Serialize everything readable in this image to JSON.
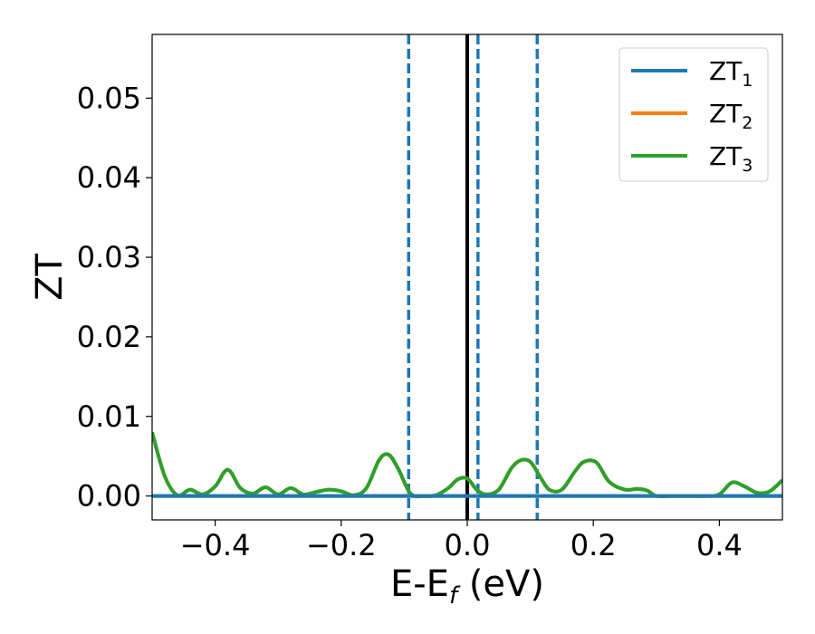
{
  "chart_data": {
    "type": "line",
    "xlabel": "E-E",
    "xlabel_sub": "f",
    "xlabel_unit": " (eV)",
    "ylabel": "ZT",
    "xlim": [
      -0.5,
      0.5
    ],
    "ylim": [
      -0.003,
      0.058
    ],
    "xticks": [
      -0.4,
      -0.2,
      0.0,
      0.2,
      0.4
    ],
    "xtick_labels": [
      "−0.4",
      "−0.2",
      "0.0",
      "0.2",
      "0.4"
    ],
    "yticks": [
      0.0,
      0.01,
      0.02,
      0.03,
      0.04,
      0.05
    ],
    "ytick_labels": [
      "0.00",
      "0.01",
      "0.02",
      "0.03",
      "0.04",
      "0.05"
    ],
    "grid": false,
    "legend_position": "top-right",
    "vertical_lines": [
      {
        "x": 0.0,
        "style": "solid",
        "color": "#000000"
      },
      {
        "x": -0.093,
        "style": "dashed",
        "color": "#1f77b4"
      },
      {
        "x": 0.017,
        "style": "dashed",
        "color": "#1f77b4"
      },
      {
        "x": 0.111,
        "style": "dashed",
        "color": "#1f77b4"
      }
    ],
    "series": [
      {
        "name": "ZT",
        "name_sub": "1",
        "color": "#1f77b4",
        "x": [
          -0.5,
          0.5
        ],
        "y": [
          0.0,
          0.0
        ]
      },
      {
        "name": "ZT",
        "name_sub": "2",
        "color": "#ff7f0e",
        "x": [
          -0.5,
          -0.48,
          -0.46,
          -0.44,
          -0.42,
          -0.4,
          -0.38,
          -0.36,
          -0.34,
          -0.32,
          -0.3,
          -0.28,
          -0.26,
          -0.24,
          -0.22,
          -0.2,
          -0.18,
          -0.16,
          -0.14,
          -0.125,
          -0.11,
          -0.09,
          -0.07,
          -0.05,
          -0.03,
          -0.015,
          0.0,
          0.015,
          0.03,
          0.05,
          0.07,
          0.085,
          0.1,
          0.115,
          0.13,
          0.15,
          0.17,
          0.185,
          0.205,
          0.225,
          0.25,
          0.27,
          0.285,
          0.3,
          0.32,
          0.35,
          0.38,
          0.4,
          0.42,
          0.44,
          0.46,
          0.48,
          0.5
        ],
        "y": [
          0.008,
          0.0025,
          0.0001,
          0.0008,
          0.0002,
          0.0012,
          0.0033,
          0.001,
          0.0003,
          0.0011,
          0.0002,
          0.001,
          0.0002,
          0.0005,
          0.0008,
          0.0006,
          0.0001,
          0.001,
          0.0045,
          0.0052,
          0.0035,
          0.0003,
          0.0,
          0.0001,
          0.001,
          0.0021,
          0.0022,
          0.0008,
          0.0002,
          0.0008,
          0.0035,
          0.0045,
          0.0043,
          0.0025,
          0.0008,
          0.0008,
          0.003,
          0.0043,
          0.0042,
          0.0018,
          0.0008,
          0.0009,
          0.0007,
          0.0,
          0.0,
          0.0,
          0.0,
          0.0002,
          0.0017,
          0.0012,
          0.0004,
          0.0006,
          0.002
        ]
      },
      {
        "name": "ZT",
        "name_sub": "3",
        "color": "#2ca02c",
        "x": [
          -0.5,
          -0.48,
          -0.46,
          -0.44,
          -0.42,
          -0.4,
          -0.38,
          -0.36,
          -0.34,
          -0.32,
          -0.3,
          -0.28,
          -0.26,
          -0.24,
          -0.22,
          -0.2,
          -0.18,
          -0.16,
          -0.14,
          -0.125,
          -0.11,
          -0.09,
          -0.07,
          -0.05,
          -0.03,
          -0.015,
          0.0,
          0.015,
          0.03,
          0.05,
          0.07,
          0.085,
          0.1,
          0.115,
          0.13,
          0.15,
          0.17,
          0.185,
          0.205,
          0.225,
          0.25,
          0.27,
          0.285,
          0.3,
          0.32,
          0.35,
          0.38,
          0.4,
          0.42,
          0.44,
          0.46,
          0.48,
          0.5
        ],
        "y": [
          0.008,
          0.0025,
          0.0001,
          0.0008,
          0.0002,
          0.0012,
          0.0033,
          0.001,
          0.0003,
          0.0011,
          0.0002,
          0.001,
          0.0002,
          0.0005,
          0.0008,
          0.0006,
          0.0001,
          0.001,
          0.0045,
          0.0052,
          0.0035,
          0.0003,
          0.0,
          0.0001,
          0.001,
          0.0021,
          0.0022,
          0.0008,
          0.0002,
          0.0008,
          0.0035,
          0.0045,
          0.0043,
          0.0025,
          0.0008,
          0.0008,
          0.003,
          0.0043,
          0.0042,
          0.0018,
          0.0008,
          0.0009,
          0.0007,
          0.0,
          0.0,
          0.0,
          0.0,
          0.0002,
          0.0017,
          0.0012,
          0.0004,
          0.0006,
          0.002
        ]
      }
    ]
  }
}
